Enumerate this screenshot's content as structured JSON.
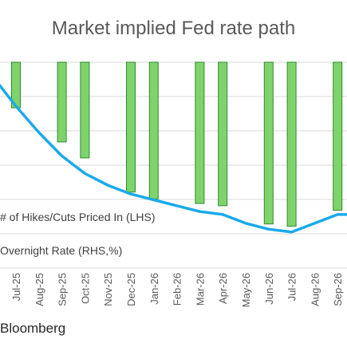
{
  "chart_data": {
    "type": "bar+line",
    "title": "Market implied Fed rate path",
    "categories": [
      "Jul-25",
      "Aug-25",
      "Sep-25",
      "Oct-25",
      "Nov-25",
      "Dec-25",
      "Jan-26",
      "Feb-26",
      "Mar-26",
      "Apr-26",
      "May-26",
      "Jun-26",
      "Jul-26",
      "Aug-26",
      "Sep-26"
    ],
    "series": [
      {
        "name": "# of Hikes/Cuts Priced In (LHS)",
        "type": "bar",
        "axis": "left",
        "color": "#7ED46B",
        "values": [
          -0.2,
          null,
          -0.35,
          -0.42,
          null,
          -0.57,
          -0.6,
          null,
          -0.62,
          -0.63,
          null,
          -0.71,
          -0.72,
          null,
          -0.65
        ]
      },
      {
        "name": "Overnight Rate (RHS,%)",
        "type": "line",
        "axis": "right",
        "color": "#1AAAE8",
        "values": [
          4.3,
          4.21,
          4.13,
          4.07,
          4.03,
          4.0,
          3.98,
          3.96,
          3.94,
          3.93,
          3.9,
          3.88,
          3.87,
          3.9,
          3.93
        ]
      }
    ],
    "grid": true,
    "legend": "inside-bottom-left",
    "source": "Bloomberg"
  }
}
